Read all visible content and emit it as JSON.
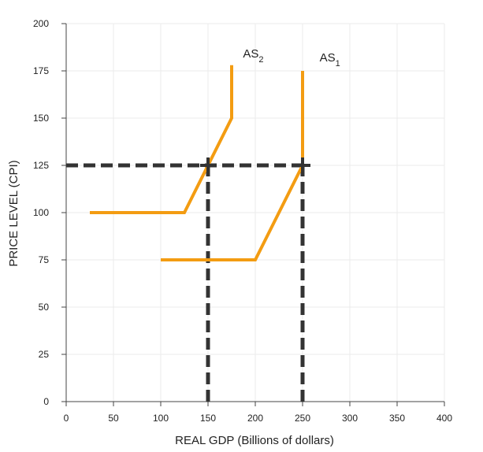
{
  "chart_data": {
    "type": "line",
    "xlabel": "REAL GDP (Billions of dollars)",
    "ylabel": "PRICE LEVEL (CPI)",
    "xlim": [
      0,
      400
    ],
    "ylim": [
      0,
      200
    ],
    "xticks": [
      0,
      50,
      100,
      150,
      200,
      250,
      300,
      350,
      400
    ],
    "yticks": [
      0,
      25,
      50,
      75,
      100,
      125,
      150,
      175,
      200
    ],
    "grid": true,
    "colors": {
      "series": "#f39c12",
      "guide": "#333333",
      "grid": "#ebebeb",
      "axis": "#444444"
    },
    "series": [
      {
        "name": "AS",
        "subscript": "1",
        "points": [
          [
            100,
            75
          ],
          [
            200,
            75
          ],
          [
            250,
            125
          ],
          [
            250,
            175
          ]
        ],
        "label_at": [
          268,
          180
        ]
      },
      {
        "name": "AS",
        "subscript": "2",
        "points": [
          [
            25,
            100
          ],
          [
            125,
            100
          ],
          [
            175,
            150
          ],
          [
            175,
            178
          ]
        ],
        "label_at": [
          187,
          182
        ]
      }
    ],
    "guides": [
      {
        "points": [
          [
            0,
            125
          ],
          [
            250,
            125
          ]
        ]
      },
      {
        "points": [
          [
            150,
            0
          ],
          [
            150,
            125
          ]
        ]
      },
      {
        "points": [
          [
            250,
            0
          ],
          [
            250,
            125
          ]
        ]
      }
    ],
    "markers": [
      {
        "x": 150,
        "y": 125,
        "shape": "plus"
      },
      {
        "x": 250,
        "y": 125,
        "shape": "plus"
      }
    ]
  }
}
